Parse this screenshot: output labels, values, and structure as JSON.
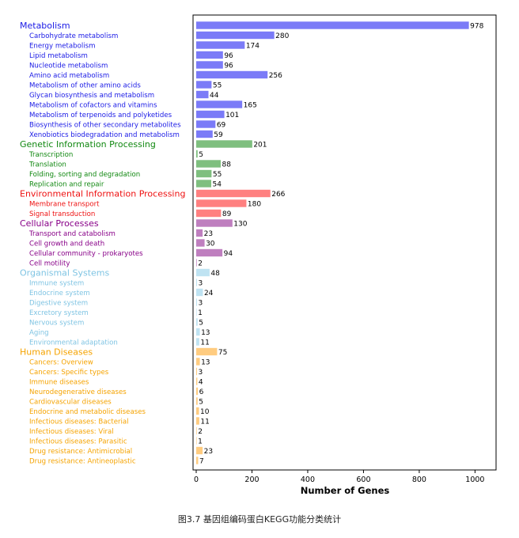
{
  "caption": "图3.7 基因组编码蛋白KEGG功能分类统计",
  "chart_data": {
    "type": "bar",
    "orientation": "horizontal",
    "xlabel": "Number of Genes",
    "xlim": [
      0,
      1000
    ],
    "xticks": [
      0,
      200,
      400,
      600,
      800,
      1000
    ],
    "grid": false,
    "groups": [
      {
        "name": "Metabolism",
        "color": "#7b7bf7",
        "textColor": "#1a1ae6",
        "value": 978,
        "items": [
          {
            "label": "Carbohydrate metabolism",
            "value": 280
          },
          {
            "label": "Energy metabolism",
            "value": 174
          },
          {
            "label": "Lipid metabolism",
            "value": 96
          },
          {
            "label": "Nucleotide metabolism",
            "value": 96
          },
          {
            "label": "Amino acid metabolism",
            "value": 256
          },
          {
            "label": "Metabolism of other amino acids",
            "value": 55
          },
          {
            "label": "Glycan biosynthesis and metabolism",
            "value": 44
          },
          {
            "label": "Metabolism of cofactors and vitamins",
            "value": 165
          },
          {
            "label": "Metabolism of terpenoids and polyketides",
            "value": 101
          },
          {
            "label": "Biosynthesis of other secondary metabolites",
            "value": 69
          },
          {
            "label": "Xenobiotics biodegradation and metabolism",
            "value": 59
          }
        ]
      },
      {
        "name": "Genetic Information Processing",
        "color": "#7fbf7f",
        "textColor": "#118811",
        "value": 201,
        "items": [
          {
            "label": "Transcription",
            "value": 5
          },
          {
            "label": "Translation",
            "value": 88
          },
          {
            "label": "Folding, sorting and degradation",
            "value": 55
          },
          {
            "label": "Replication and repair",
            "value": 54
          }
        ]
      },
      {
        "name": "Environmental Information Processing",
        "color": "#ff8080",
        "textColor": "#ee1111",
        "value": 266,
        "items": [
          {
            "label": "Membrane transport",
            "value": 180
          },
          {
            "label": "Signal transduction",
            "value": 89
          }
        ]
      },
      {
        "name": "Cellular Processes",
        "color": "#bf7fbf",
        "textColor": "#880088",
        "value": 130,
        "items": [
          {
            "label": "Transport and catabolism",
            "value": 23
          },
          {
            "label": "Cell growth and death",
            "value": 30
          },
          {
            "label": "Cellular community - prokaryotes",
            "value": 94
          },
          {
            "label": "Cell motility",
            "value": 2
          }
        ]
      },
      {
        "name": "Organismal Systems",
        "color": "#bfe3f2",
        "textColor": "#7fc4e3",
        "value": 48,
        "items": [
          {
            "label": "Immune system",
            "value": 3
          },
          {
            "label": "Endocrine system",
            "value": 24
          },
          {
            "label": "Digestive system",
            "value": 3
          },
          {
            "label": "Excretory system",
            "value": 1
          },
          {
            "label": "Nervous system",
            "value": 5
          },
          {
            "label": "Aging",
            "value": 13
          },
          {
            "label": "Environmental adaptation",
            "value": 11
          }
        ]
      },
      {
        "name": "Human Diseases",
        "color": "#ffcc80",
        "textColor": "#f5a300",
        "value": 75,
        "items": [
          {
            "label": "Cancers: Overview",
            "value": 13
          },
          {
            "label": "Cancers: Specific types",
            "value": 3
          },
          {
            "label": "Immune diseases",
            "value": 4
          },
          {
            "label": "Neurodegenerative diseases",
            "value": 6
          },
          {
            "label": "Cardiovascular diseases",
            "value": 5
          },
          {
            "label": "Endocrine and metabolic diseases",
            "value": 10
          },
          {
            "label": "Infectious diseases: Bacterial",
            "value": 11
          },
          {
            "label": "Infectious diseases: Viral",
            "value": 2
          },
          {
            "label": "Infectious diseases: Parasitic",
            "value": 1
          },
          {
            "label": "Drug resistance: Antimicrobial",
            "value": 23
          },
          {
            "label": "Drug resistance: Antineoplastic",
            "value": 7
          }
        ]
      }
    ]
  }
}
